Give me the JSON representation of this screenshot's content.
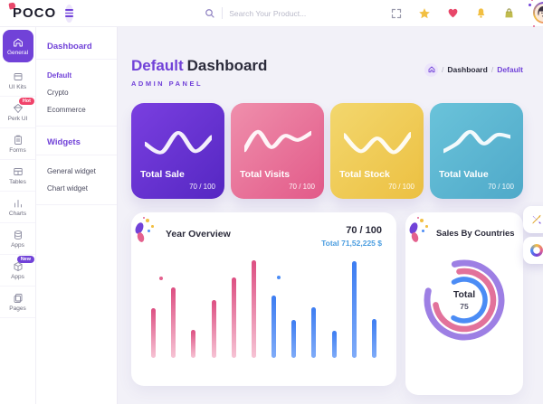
{
  "colors": {
    "accent": "#7142d8",
    "accent_light": "#ece5fb",
    "badge_hot": "#f0436a",
    "blue_text": "#4a9de0",
    "bg_main": "#f2f1f8",
    "star": "#f2bf42",
    "heart": "#e8476a",
    "bell": "#f2bf42",
    "bag": "#c0bb4e"
  },
  "header": {
    "logo": "POCO",
    "search_placeholder": "Search Your Product...",
    "icons": [
      "fullscreen-icon",
      "star-icon",
      "heart-icon",
      "bell-icon",
      "bag-icon"
    ]
  },
  "sidebar": {
    "items": [
      {
        "label": "General",
        "icon": "home-icon",
        "active": true
      },
      {
        "label": "UI Kits",
        "icon": "box-icon"
      },
      {
        "label": "Perk UI",
        "icon": "diamond-icon",
        "badge": "Hot"
      },
      {
        "label": "Forms",
        "icon": "clipboard-icon"
      },
      {
        "label": "Tables",
        "icon": "table-icon"
      },
      {
        "label": "Charts",
        "icon": "chart-icon"
      },
      {
        "label": "Apps",
        "icon": "database-icon"
      },
      {
        "label": "Apps",
        "icon": "package-icon",
        "badge": "New"
      },
      {
        "label": "Pages",
        "icon": "pages-icon"
      }
    ]
  },
  "submenu": {
    "sections": [
      {
        "title": "Dashboard",
        "items": [
          {
            "label": "Default",
            "active": true
          },
          {
            "label": "Crypto"
          },
          {
            "label": "Ecommerce"
          }
        ]
      },
      {
        "title": "Widgets",
        "items": [
          {
            "label": "General widget"
          },
          {
            "label": "Chart widget"
          }
        ]
      }
    ]
  },
  "page": {
    "title_accent": "Default",
    "title": "Dashboard",
    "subtitle": "ADMIN PANEL",
    "breadcrumb": [
      "Dashboard",
      "Default"
    ]
  },
  "stat_cards": [
    {
      "title": "Total Sale",
      "value": "70 / 100",
      "from": "#7a3fe0",
      "to": "#5527c2",
      "spark": [
        35,
        52,
        14,
        50,
        22
      ]
    },
    {
      "title": "Total Visits",
      "value": "70 / 100",
      "from": "#ef8fac",
      "to": "#e25a89",
      "spark": [
        48,
        12,
        42,
        20,
        28,
        14
      ]
    },
    {
      "title": "Total Stock",
      "value": "70 / 100",
      "from": "#f3d76e",
      "to": "#ecc041",
      "spark": [
        18,
        50,
        25,
        52,
        16
      ]
    },
    {
      "title": "Total Value",
      "value": "70 / 100",
      "from": "#6ac3da",
      "to": "#4fa9c9",
      "spark": [
        50,
        35,
        12,
        35,
        18,
        22
      ]
    }
  ],
  "chart_data": [
    {
      "type": "bar",
      "title": "Year Overview",
      "score": "70 / 100",
      "total_label": "Total 71,52,225 $",
      "values": [
        51,
        72,
        29,
        59,
        82,
        100,
        64,
        39,
        52,
        28,
        99,
        40
      ],
      "series_split": 6,
      "series_colors": {
        "first_half": "#dd4f82",
        "second_half": "#3d7df2"
      },
      "xlabel": "",
      "ylabel": "",
      "grid": false,
      "axis_labels_visible": false
    },
    {
      "type": "donut",
      "title": "Sales By Countries",
      "center_label": "Total",
      "center_value": "75",
      "rings": [
        {
          "name": "outer",
          "color": "#9d7fe4",
          "radius": 41,
          "width": 7,
          "percent": 83,
          "start_angle": 255
        },
        {
          "name": "middle",
          "color": "#e2729b",
          "radius": 32,
          "width": 6.5,
          "percent": 75,
          "start_angle": 260
        },
        {
          "name": "inner",
          "color": "#4b8cf5",
          "radius": 23,
          "width": 5.5,
          "percent": 67,
          "start_angle": 240
        }
      ]
    }
  ],
  "floating_buttons": [
    "customizer-tools-button",
    "theme-wheel-button"
  ]
}
